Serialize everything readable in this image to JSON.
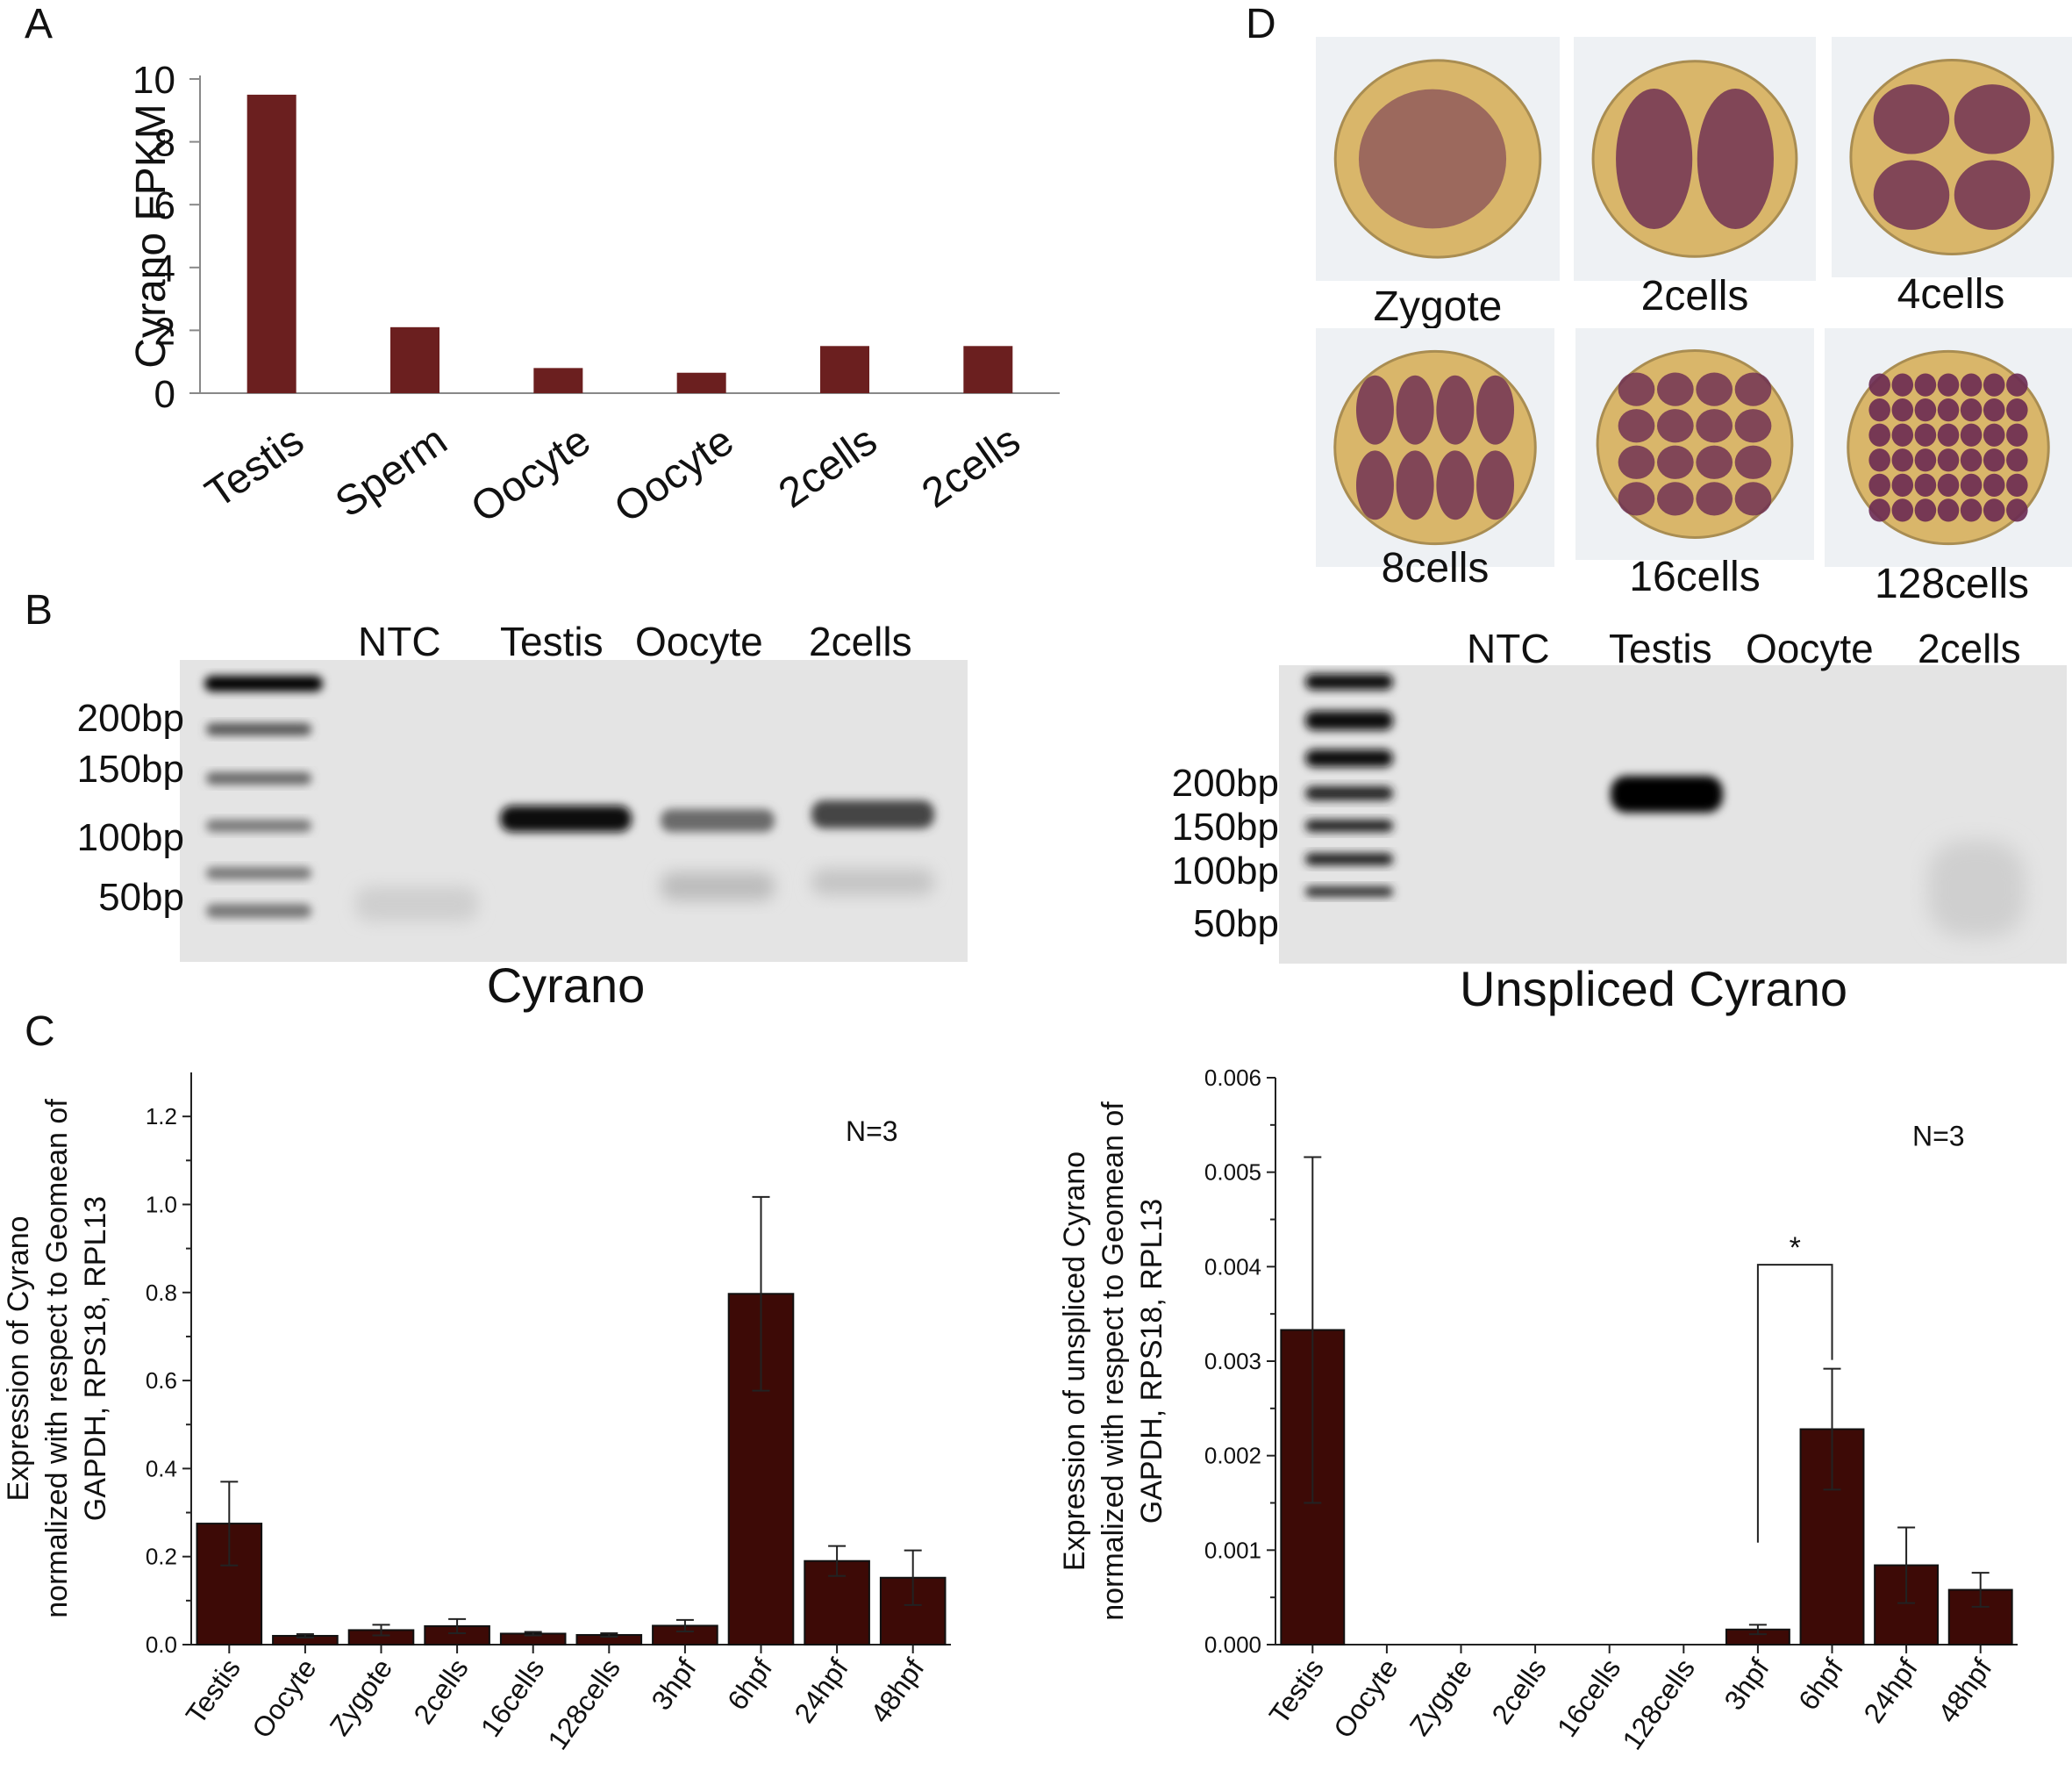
{
  "panels": {
    "A": {
      "letter": "A"
    },
    "B": {
      "letter": "B"
    },
    "C": {
      "letter": "C"
    },
    "D": {
      "letter": "D"
    }
  },
  "embryos": {
    "labels": [
      "Zygote",
      "2cells",
      "4cells",
      "8cells",
      "16cells",
      "128cells"
    ]
  },
  "gels": {
    "left": {
      "lanes": [
        "NTC",
        "Testis",
        "Oocyte",
        "2cells"
      ],
      "sizes": [
        "200bp",
        "150bp",
        "100bp",
        "50bp"
      ],
      "caption": "Cyrano"
    },
    "right": {
      "lanes": [
        "NTC",
        "Testis",
        "Oocyte",
        "2cells"
      ],
      "sizes": [
        "200bp",
        "150bp",
        "100bp",
        "50bp"
      ],
      "caption": "Unspliced Cyrano"
    }
  },
  "colors": {
    "bar_A": "#6b1f1f",
    "bar_C": "#3d0a06",
    "embryo_yolk": "#d9b66a",
    "embryo_stain": "#6a2a52"
  },
  "chart_data": [
    {
      "type": "bar",
      "panel": "A",
      "categories": [
        "Testis",
        "Sperm",
        "Oocyte",
        "Oocyte",
        "2cells",
        "2cells"
      ],
      "values": [
        9.5,
        2.1,
        0.8,
        0.65,
        1.5,
        1.5
      ],
      "ylabel": "Cyrano FPKM",
      "ylim": [
        0,
        10
      ],
      "yticks": [
        "0",
        "2",
        "4",
        "6",
        "8",
        "10"
      ]
    },
    {
      "type": "bar",
      "panel": "C-left",
      "categories": [
        "Testis",
        "Oocyte",
        "Zygote",
        "2cells",
        "16cells",
        "128cells",
        "3hpf",
        "6hpf",
        "24hpf",
        "48hpf"
      ],
      "values": [
        0.275,
        0.02,
        0.033,
        0.042,
        0.025,
        0.022,
        0.043,
        0.797,
        0.19,
        0.152
      ],
      "errors": [
        0.095,
        0.004,
        0.012,
        0.016,
        0.004,
        0.004,
        0.013,
        0.22,
        0.034,
        0.062
      ],
      "ylabel": [
        "Expression of Cyrano",
        "normalized with respect to Geomean of",
        "GAPDH, RPS18, RPL13"
      ],
      "ylim": [
        0,
        1.3
      ],
      "yticks": [
        "0.0",
        "0.2",
        "0.4",
        "0.6",
        "0.8",
        "1.0",
        "1.2"
      ],
      "annotation": "N=3"
    },
    {
      "type": "bar",
      "panel": "C-right",
      "categories": [
        "Testis",
        "Oocyte",
        "Zygote",
        "2cells",
        "16cells",
        "128cells",
        "3hpf",
        "6hpf",
        "24hpf",
        "48hpf"
      ],
      "values": [
        0.00333,
        0,
        0,
        0,
        0,
        0,
        0.00016,
        0.00228,
        0.00084,
        0.00058
      ],
      "errors": [
        0.00183,
        0,
        0,
        0,
        0,
        0,
        5e-05,
        0.00064,
        0.0004,
        0.00018
      ],
      "ylabel": [
        "Expression of unspliced Cyrano",
        "normalized with respect to Geomean of",
        "GAPDH, RPS18, RPL13"
      ],
      "ylim": [
        0,
        0.006
      ],
      "yticks": [
        "0.000",
        "0.001",
        "0.002",
        "0.003",
        "0.004",
        "0.005",
        "0.006"
      ],
      "annotation": "N=3",
      "significance": {
        "from": "3hpf",
        "to": "6hpf",
        "label": "*"
      }
    }
  ]
}
